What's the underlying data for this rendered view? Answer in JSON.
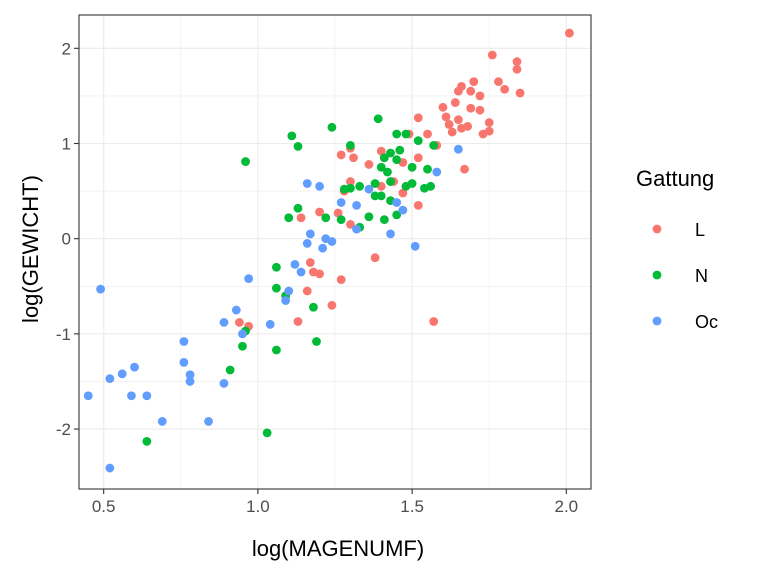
{
  "chart_data": {
    "type": "scatter",
    "xlabel": "log(MAGENUMF)",
    "ylabel": "log(GEWICHT)",
    "xlim": [
      0.42,
      2.08
    ],
    "ylim": [
      -2.63,
      2.35
    ],
    "x_ticks": [
      0.5,
      1.0,
      1.5,
      2.0
    ],
    "x_tick_labels": [
      "0.5",
      "1.0",
      "1.5",
      "2.0"
    ],
    "y_ticks": [
      -2,
      -1,
      0,
      1,
      2
    ],
    "y_tick_labels": [
      "-2",
      "-1",
      "0",
      "1",
      "2"
    ],
    "grid": true,
    "legend": {
      "title": "Gattung",
      "position": "right"
    },
    "series": [
      {
        "name": "L",
        "color": "#F8766D",
        "points": [
          [
            2.01,
            2.16
          ],
          [
            1.76,
            1.93
          ],
          [
            1.84,
            1.86
          ],
          [
            1.84,
            1.78
          ],
          [
            1.7,
            1.65
          ],
          [
            1.78,
            1.65
          ],
          [
            1.66,
            1.6
          ],
          [
            1.65,
            1.55
          ],
          [
            1.69,
            1.55
          ],
          [
            1.72,
            1.5
          ],
          [
            1.8,
            1.57
          ],
          [
            1.85,
            1.53
          ],
          [
            1.64,
            1.43
          ],
          [
            1.6,
            1.38
          ],
          [
            1.69,
            1.37
          ],
          [
            1.72,
            1.35
          ],
          [
            1.52,
            1.27
          ],
          [
            1.61,
            1.28
          ],
          [
            1.65,
            1.25
          ],
          [
            1.75,
            1.22
          ],
          [
            1.62,
            1.2
          ],
          [
            1.68,
            1.18
          ],
          [
            1.66,
            1.16
          ],
          [
            1.75,
            1.13
          ],
          [
            1.63,
            1.12
          ],
          [
            1.55,
            1.1
          ],
          [
            1.49,
            1.1
          ],
          [
            1.73,
            1.1
          ],
          [
            1.58,
            0.98
          ],
          [
            1.52,
            0.85
          ],
          [
            1.47,
            0.8
          ],
          [
            1.4,
            0.92
          ],
          [
            1.41,
            0.85
          ],
          [
            1.3,
            0.95
          ],
          [
            1.31,
            0.85
          ],
          [
            1.27,
            0.88
          ],
          [
            1.36,
            0.78
          ],
          [
            1.3,
            0.6
          ],
          [
            1.4,
            0.55
          ],
          [
            1.28,
            0.5
          ],
          [
            1.44,
            0.6
          ],
          [
            1.47,
            0.48
          ],
          [
            1.52,
            0.35
          ],
          [
            1.67,
            0.73
          ],
          [
            1.2,
            0.28
          ],
          [
            1.26,
            0.27
          ],
          [
            1.3,
            0.15
          ],
          [
            1.14,
            0.22
          ],
          [
            1.17,
            -0.25
          ],
          [
            1.18,
            -0.35
          ],
          [
            1.2,
            -0.37
          ],
          [
            1.16,
            -0.55
          ],
          [
            1.27,
            -0.43
          ],
          [
            1.38,
            -0.2
          ],
          [
            1.24,
            -0.7
          ],
          [
            1.13,
            -0.87
          ],
          [
            1.57,
            -0.87
          ],
          [
            0.94,
            -0.88
          ],
          [
            0.97,
            -0.92
          ]
        ]
      },
      {
        "name": "N",
        "color": "#00BA38",
        "points": [
          [
            1.11,
            1.08
          ],
          [
            1.24,
            1.17
          ],
          [
            1.39,
            1.26
          ],
          [
            1.45,
            1.1
          ],
          [
            1.48,
            1.1
          ],
          [
            1.52,
            1.03
          ],
          [
            1.13,
            0.97
          ],
          [
            1.3,
            0.98
          ],
          [
            1.41,
            0.85
          ],
          [
            1.46,
            0.93
          ],
          [
            1.57,
            0.98
          ],
          [
            1.43,
            0.9
          ],
          [
            1.45,
            0.83
          ],
          [
            1.4,
            0.75
          ],
          [
            1.42,
            0.7
          ],
          [
            1.5,
            0.75
          ],
          [
            1.55,
            0.73
          ],
          [
            1.43,
            0.6
          ],
          [
            1.38,
            0.58
          ],
          [
            1.48,
            0.55
          ],
          [
            1.5,
            0.58
          ],
          [
            1.54,
            0.53
          ],
          [
            1.56,
            0.55
          ],
          [
            1.28,
            0.52
          ],
          [
            1.3,
            0.53
          ],
          [
            1.33,
            0.55
          ],
          [
            1.38,
            0.45
          ],
          [
            1.4,
            0.45
          ],
          [
            1.43,
            0.4
          ],
          [
            1.45,
            0.25
          ],
          [
            1.36,
            0.23
          ],
          [
            1.41,
            0.2
          ],
          [
            1.33,
            0.12
          ],
          [
            1.27,
            0.2
          ],
          [
            1.22,
            0.22
          ],
          [
            1.13,
            0.32
          ],
          [
            1.1,
            0.22
          ],
          [
            0.96,
            0.81
          ],
          [
            1.06,
            -0.3
          ],
          [
            1.06,
            -0.52
          ],
          [
            1.09,
            -0.6
          ],
          [
            1.18,
            -0.72
          ],
          [
            0.96,
            -0.97
          ],
          [
            0.95,
            -1.13
          ],
          [
            1.06,
            -1.17
          ],
          [
            1.19,
            -1.08
          ],
          [
            0.91,
            -1.38
          ],
          [
            0.64,
            -2.13
          ],
          [
            1.03,
            -2.04
          ]
        ]
      },
      {
        "name": "Oc",
        "color": "#619CFF",
        "points": [
          [
            1.65,
            0.94
          ],
          [
            1.58,
            0.7
          ],
          [
            1.16,
            0.58
          ],
          [
            1.2,
            0.55
          ],
          [
            1.36,
            0.52
          ],
          [
            1.27,
            0.38
          ],
          [
            1.32,
            0.35
          ],
          [
            1.45,
            0.38
          ],
          [
            1.47,
            0.3
          ],
          [
            1.32,
            0.1
          ],
          [
            1.43,
            0.05
          ],
          [
            1.17,
            0.05
          ],
          [
            1.22,
            0.0
          ],
          [
            1.24,
            -0.03
          ],
          [
            1.16,
            -0.05
          ],
          [
            1.21,
            -0.1
          ],
          [
            1.51,
            -0.08
          ],
          [
            1.12,
            -0.27
          ],
          [
            1.14,
            -0.35
          ],
          [
            1.1,
            -0.55
          ],
          [
            1.09,
            -0.65
          ],
          [
            0.97,
            -0.42
          ],
          [
            0.93,
            -0.75
          ],
          [
            0.89,
            -0.88
          ],
          [
            1.04,
            -0.9
          ],
          [
            0.95,
            -1.0
          ],
          [
            0.76,
            -1.08
          ],
          [
            0.76,
            -1.3
          ],
          [
            0.78,
            -1.43
          ],
          [
            0.78,
            -1.5
          ],
          [
            0.89,
            -1.52
          ],
          [
            0.6,
            -1.35
          ],
          [
            0.56,
            -1.42
          ],
          [
            0.52,
            -1.47
          ],
          [
            0.49,
            -0.53
          ],
          [
            0.45,
            -1.65
          ],
          [
            0.59,
            -1.65
          ],
          [
            0.64,
            -1.65
          ],
          [
            0.69,
            -1.92
          ],
          [
            0.84,
            -1.92
          ],
          [
            0.52,
            -2.41
          ]
        ]
      }
    ]
  }
}
